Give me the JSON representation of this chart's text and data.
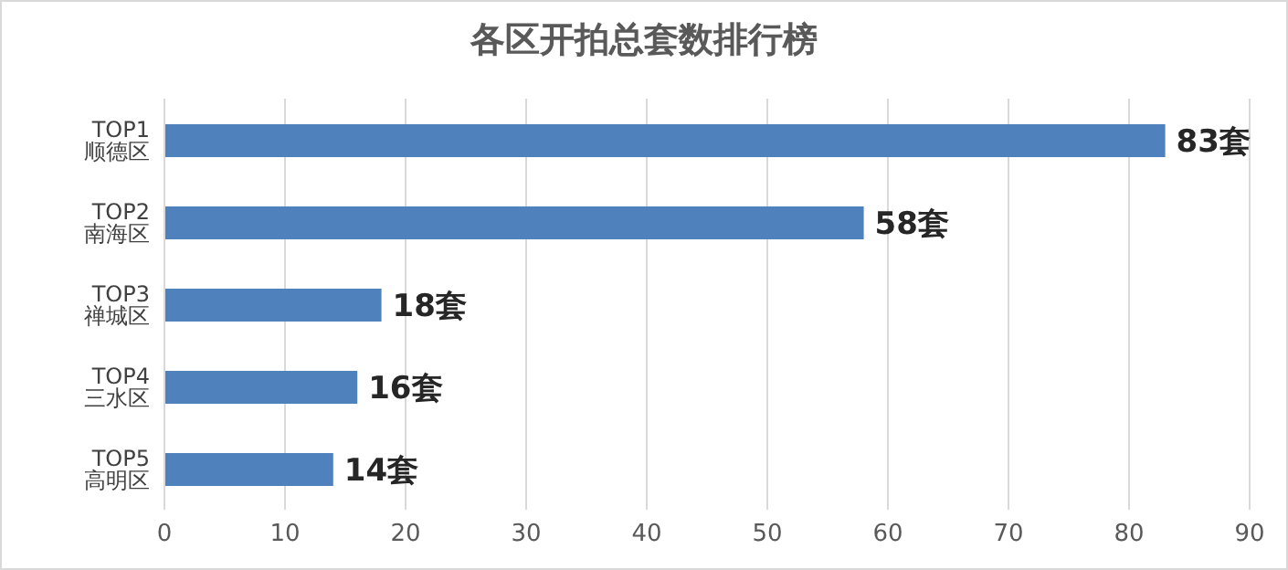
{
  "chart_data": {
    "type": "bar",
    "orientation": "horizontal",
    "title": "各区开拍总套数排行榜",
    "categories": [
      "TOP1 顺德区",
      "TOP2 南海区",
      "TOP3 禅城区",
      "TOP4 三水区",
      "TOP5 高明区"
    ],
    "values": [
      83,
      58,
      18,
      16,
      14
    ],
    "value_labels": [
      "83套",
      "58套",
      "18套",
      "16套",
      "14套"
    ],
    "color": "#4f81bd",
    "xlim": [
      0,
      90
    ],
    "xticks": [
      0,
      10,
      20,
      30,
      40,
      50,
      60,
      70,
      80,
      90
    ],
    "grid": "x"
  }
}
